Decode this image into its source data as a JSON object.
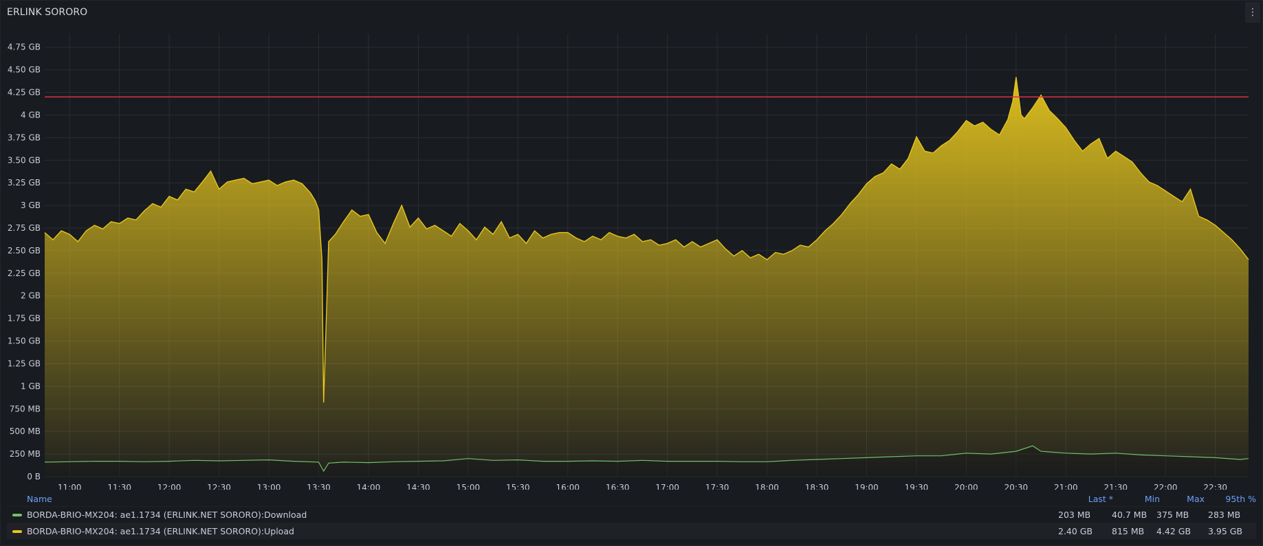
{
  "panel": {
    "title": "ERLINK SORORO",
    "menu_icon": "vertical-dots-icon"
  },
  "colors": {
    "background": "#181b1f",
    "grid": "#2a2d33",
    "upload": "#e5c51e",
    "download": "#73bf69",
    "threshold": "#e02f44",
    "legend_header": "#6e9fff"
  },
  "chart_data": {
    "type": "area",
    "title": "ERLINK SORORO",
    "xlabel": "",
    "ylabel": "",
    "y_unit": "GB",
    "ylim": [
      0,
      4.9
    ],
    "grid": true,
    "legend_placement": "bottom",
    "x_ticks": [
      "11:00",
      "11:30",
      "12:00",
      "12:30",
      "13:00",
      "13:30",
      "14:00",
      "14:30",
      "15:00",
      "15:30",
      "16:00",
      "16:30",
      "17:00",
      "17:30",
      "18:00",
      "18:30",
      "19:00",
      "19:30",
      "20:00",
      "20:30",
      "21:00",
      "21:30",
      "22:00",
      "22:30"
    ],
    "y_ticks": [
      {
        "value": 0,
        "label": "0 B"
      },
      {
        "value": 0.25,
        "label": "250 MB"
      },
      {
        "value": 0.5,
        "label": "500 MB"
      },
      {
        "value": 0.75,
        "label": "750 MB"
      },
      {
        "value": 1.0,
        "label": "1 GB"
      },
      {
        "value": 1.25,
        "label": "1.25 GB"
      },
      {
        "value": 1.5,
        "label": "1.50 GB"
      },
      {
        "value": 1.75,
        "label": "1.75 GB"
      },
      {
        "value": 2.0,
        "label": "2 GB"
      },
      {
        "value": 2.25,
        "label": "2.25 GB"
      },
      {
        "value": 2.5,
        "label": "2.50 GB"
      },
      {
        "value": 2.75,
        "label": "2.75 GB"
      },
      {
        "value": 3.0,
        "label": "3 GB"
      },
      {
        "value": 3.25,
        "label": "3.25 GB"
      },
      {
        "value": 3.5,
        "label": "3.50 GB"
      },
      {
        "value": 3.75,
        "label": "3.75 GB"
      },
      {
        "value": 4.0,
        "label": "4 GB"
      },
      {
        "value": 4.25,
        "label": "4.25 GB"
      },
      {
        "value": 4.5,
        "label": "4.50 GB"
      },
      {
        "value": 4.75,
        "label": "4.75 GB"
      }
    ],
    "threshold": 4.2,
    "x_start": "10:45",
    "x_end": "22:50",
    "series": [
      {
        "name": "BORDA-BRIO-MX204: ae1.1734 (ERLINK.NET SORORO):Upload",
        "color": "#e5c51e",
        "points": [
          [
            "10:45",
            2.7
          ],
          [
            "10:50",
            2.62
          ],
          [
            "10:55",
            2.72
          ],
          [
            "11:00",
            2.68
          ],
          [
            "11:05",
            2.6
          ],
          [
            "11:10",
            2.72
          ],
          [
            "11:15",
            2.78
          ],
          [
            "11:20",
            2.74
          ],
          [
            "11:25",
            2.82
          ],
          [
            "11:30",
            2.8
          ],
          [
            "11:35",
            2.86
          ],
          [
            "11:40",
            2.84
          ],
          [
            "11:45",
            2.94
          ],
          [
            "11:50",
            3.02
          ],
          [
            "11:55",
            2.98
          ],
          [
            "12:00",
            3.1
          ],
          [
            "12:05",
            3.06
          ],
          [
            "12:10",
            3.18
          ],
          [
            "12:15",
            3.15
          ],
          [
            "12:20",
            3.26
          ],
          [
            "12:25",
            3.38
          ],
          [
            "12:30",
            3.18
          ],
          [
            "12:35",
            3.26
          ],
          [
            "12:40",
            3.28
          ],
          [
            "12:45",
            3.3
          ],
          [
            "12:50",
            3.24
          ],
          [
            "12:55",
            3.26
          ],
          [
            "13:00",
            3.28
          ],
          [
            "13:05",
            3.22
          ],
          [
            "13:10",
            3.26
          ],
          [
            "13:15",
            3.28
          ],
          [
            "13:20",
            3.24
          ],
          [
            "13:25",
            3.14
          ],
          [
            "13:28",
            3.05
          ],
          [
            "13:30",
            2.95
          ],
          [
            "13:32",
            2.4
          ],
          [
            "13:33",
            0.82
          ],
          [
            "13:34",
            1.4
          ],
          [
            "13:36",
            2.6
          ],
          [
            "13:40",
            2.68
          ],
          [
            "13:45",
            2.82
          ],
          [
            "13:50",
            2.95
          ],
          [
            "13:55",
            2.88
          ],
          [
            "14:00",
            2.9
          ],
          [
            "14:05",
            2.7
          ],
          [
            "14:10",
            2.58
          ],
          [
            "14:15",
            2.8
          ],
          [
            "14:20",
            3.0
          ],
          [
            "14:25",
            2.76
          ],
          [
            "14:30",
            2.86
          ],
          [
            "14:35",
            2.74
          ],
          [
            "14:40",
            2.78
          ],
          [
            "14:45",
            2.72
          ],
          [
            "14:50",
            2.66
          ],
          [
            "14:55",
            2.8
          ],
          [
            "15:00",
            2.72
          ],
          [
            "15:05",
            2.62
          ],
          [
            "15:10",
            2.76
          ],
          [
            "15:15",
            2.68
          ],
          [
            "15:20",
            2.82
          ],
          [
            "15:25",
            2.64
          ],
          [
            "15:30",
            2.68
          ],
          [
            "15:35",
            2.58
          ],
          [
            "15:40",
            2.72
          ],
          [
            "15:45",
            2.64
          ],
          [
            "15:50",
            2.68
          ],
          [
            "15:55",
            2.7
          ],
          [
            "16:00",
            2.7
          ],
          [
            "16:05",
            2.64
          ],
          [
            "16:10",
            2.6
          ],
          [
            "16:15",
            2.66
          ],
          [
            "16:20",
            2.62
          ],
          [
            "16:25",
            2.7
          ],
          [
            "16:30",
            2.66
          ],
          [
            "16:35",
            2.64
          ],
          [
            "16:40",
            2.68
          ],
          [
            "16:45",
            2.6
          ],
          [
            "16:50",
            2.62
          ],
          [
            "16:55",
            2.56
          ],
          [
            "17:00",
            2.58
          ],
          [
            "17:05",
            2.62
          ],
          [
            "17:10",
            2.54
          ],
          [
            "17:15",
            2.6
          ],
          [
            "17:20",
            2.54
          ],
          [
            "17:25",
            2.58
          ],
          [
            "17:30",
            2.62
          ],
          [
            "17:35",
            2.52
          ],
          [
            "17:40",
            2.44
          ],
          [
            "17:45",
            2.5
          ],
          [
            "17:50",
            2.42
          ],
          [
            "17:55",
            2.46
          ],
          [
            "18:00",
            2.4
          ],
          [
            "18:05",
            2.48
          ],
          [
            "18:10",
            2.46
          ],
          [
            "18:15",
            2.5
          ],
          [
            "18:20",
            2.56
          ],
          [
            "18:25",
            2.54
          ],
          [
            "18:30",
            2.62
          ],
          [
            "18:35",
            2.72
          ],
          [
            "18:40",
            2.8
          ],
          [
            "18:45",
            2.9
          ],
          [
            "18:50",
            3.02
          ],
          [
            "18:55",
            3.12
          ],
          [
            "19:00",
            3.24
          ],
          [
            "19:05",
            3.32
          ],
          [
            "19:10",
            3.36
          ],
          [
            "19:15",
            3.46
          ],
          [
            "19:20",
            3.4
          ],
          [
            "19:25",
            3.52
          ],
          [
            "19:30",
            3.76
          ],
          [
            "19:35",
            3.6
          ],
          [
            "19:40",
            3.58
          ],
          [
            "19:45",
            3.66
          ],
          [
            "19:50",
            3.72
          ],
          [
            "19:55",
            3.82
          ],
          [
            "20:00",
            3.94
          ],
          [
            "20:05",
            3.88
          ],
          [
            "20:10",
            3.92
          ],
          [
            "20:15",
            3.84
          ],
          [
            "20:20",
            3.78
          ],
          [
            "20:25",
            3.95
          ],
          [
            "20:28",
            4.15
          ],
          [
            "20:30",
            4.42
          ],
          [
            "20:33",
            4.0
          ],
          [
            "20:35",
            3.96
          ],
          [
            "20:40",
            4.08
          ],
          [
            "20:45",
            4.22
          ],
          [
            "20:50",
            4.05
          ],
          [
            "20:55",
            3.96
          ],
          [
            "21:00",
            3.86
          ],
          [
            "21:05",
            3.72
          ],
          [
            "21:10",
            3.6
          ],
          [
            "21:15",
            3.68
          ],
          [
            "21:20",
            3.74
          ],
          [
            "21:25",
            3.52
          ],
          [
            "21:30",
            3.6
          ],
          [
            "21:35",
            3.54
          ],
          [
            "21:40",
            3.48
          ],
          [
            "21:45",
            3.36
          ],
          [
            "21:50",
            3.26
          ],
          [
            "21:55",
            3.22
          ],
          [
            "22:00",
            3.16
          ],
          [
            "22:05",
            3.1
          ],
          [
            "22:10",
            3.04
          ],
          [
            "22:15",
            3.18
          ],
          [
            "22:20",
            2.88
          ],
          [
            "22:25",
            2.84
          ],
          [
            "22:30",
            2.78
          ],
          [
            "22:35",
            2.7
          ],
          [
            "22:40",
            2.62
          ],
          [
            "22:45",
            2.52
          ],
          [
            "22:50",
            2.4
          ]
        ]
      },
      {
        "name": "BORDA-BRIO-MX204: ae1.1734 (ERLINK.NET SORORO):Download",
        "color": "#73bf69",
        "points": [
          [
            "10:45",
            0.16
          ],
          [
            "11:00",
            0.165
          ],
          [
            "11:15",
            0.17
          ],
          [
            "11:30",
            0.17
          ],
          [
            "11:45",
            0.165
          ],
          [
            "12:00",
            0.17
          ],
          [
            "12:15",
            0.18
          ],
          [
            "12:30",
            0.175
          ],
          [
            "12:45",
            0.18
          ],
          [
            "13:00",
            0.185
          ],
          [
            "13:15",
            0.17
          ],
          [
            "13:30",
            0.16
          ],
          [
            "13:33",
            0.06
          ],
          [
            "13:36",
            0.15
          ],
          [
            "13:45",
            0.16
          ],
          [
            "14:00",
            0.155
          ],
          [
            "14:15",
            0.165
          ],
          [
            "14:30",
            0.17
          ],
          [
            "14:45",
            0.175
          ],
          [
            "15:00",
            0.2
          ],
          [
            "15:15",
            0.18
          ],
          [
            "15:30",
            0.185
          ],
          [
            "15:45",
            0.17
          ],
          [
            "16:00",
            0.17
          ],
          [
            "16:15",
            0.175
          ],
          [
            "16:30",
            0.17
          ],
          [
            "16:45",
            0.18
          ],
          [
            "17:00",
            0.17
          ],
          [
            "17:15",
            0.17
          ],
          [
            "17:30",
            0.17
          ],
          [
            "17:45",
            0.165
          ],
          [
            "18:00",
            0.165
          ],
          [
            "18:15",
            0.18
          ],
          [
            "18:30",
            0.19
          ],
          [
            "18:45",
            0.2
          ],
          [
            "19:00",
            0.21
          ],
          [
            "19:15",
            0.22
          ],
          [
            "19:30",
            0.23
          ],
          [
            "19:45",
            0.23
          ],
          [
            "20:00",
            0.26
          ],
          [
            "20:15",
            0.25
          ],
          [
            "20:30",
            0.28
          ],
          [
            "20:40",
            0.34
          ],
          [
            "20:45",
            0.28
          ],
          [
            "21:00",
            0.26
          ],
          [
            "21:15",
            0.25
          ],
          [
            "21:30",
            0.26
          ],
          [
            "21:45",
            0.24
          ],
          [
            "22:00",
            0.23
          ],
          [
            "22:15",
            0.22
          ],
          [
            "22:30",
            0.21
          ],
          [
            "22:45",
            0.19
          ],
          [
            "22:50",
            0.2
          ]
        ]
      }
    ]
  },
  "legend": {
    "headers": {
      "name": "Name",
      "last": "Last *",
      "min": "Min",
      "max": "Max",
      "p95": "95th %"
    },
    "rows": [
      {
        "name": "BORDA-BRIO-MX204: ae1.1734 (ERLINK.NET SORORO):Download",
        "color": "#73bf69",
        "last": "203 MB",
        "min": "40.7 MB",
        "max": "375 MB",
        "p95": "283 MB"
      },
      {
        "name": "BORDA-BRIO-MX204: ae1.1734 (ERLINK.NET SORORO):Upload",
        "color": "#e5c51e",
        "last": "2.40 GB",
        "min": "815 MB",
        "max": "4.42 GB",
        "p95": "3.95 GB"
      }
    ]
  }
}
